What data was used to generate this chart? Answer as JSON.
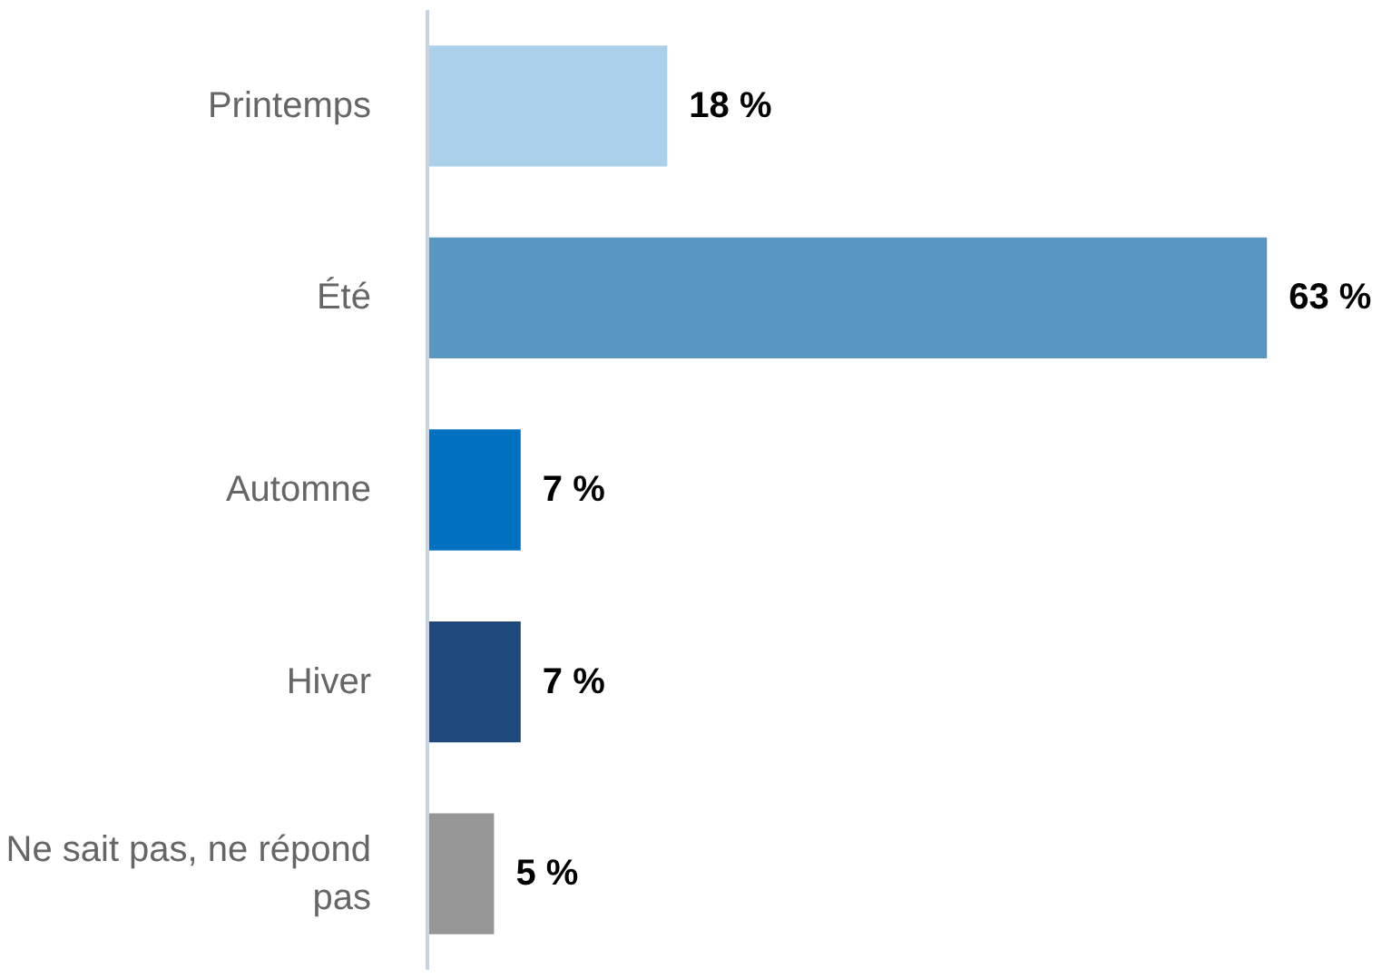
{
  "chart_data": {
    "type": "bar",
    "orientation": "horizontal",
    "categories": [
      "Printemps",
      "Été",
      "Automne",
      "Hiver",
      "Ne sait pas, ne répond pas"
    ],
    "values": [
      18,
      63,
      7,
      7,
      5
    ],
    "colors": [
      "#abd0ea",
      "#5997c3",
      "#0070c0",
      "#1f497d",
      "#969696"
    ],
    "value_labels": [
      "18 %",
      "63 %",
      "7 %",
      "7 %",
      "5 %"
    ],
    "grid": false
  }
}
